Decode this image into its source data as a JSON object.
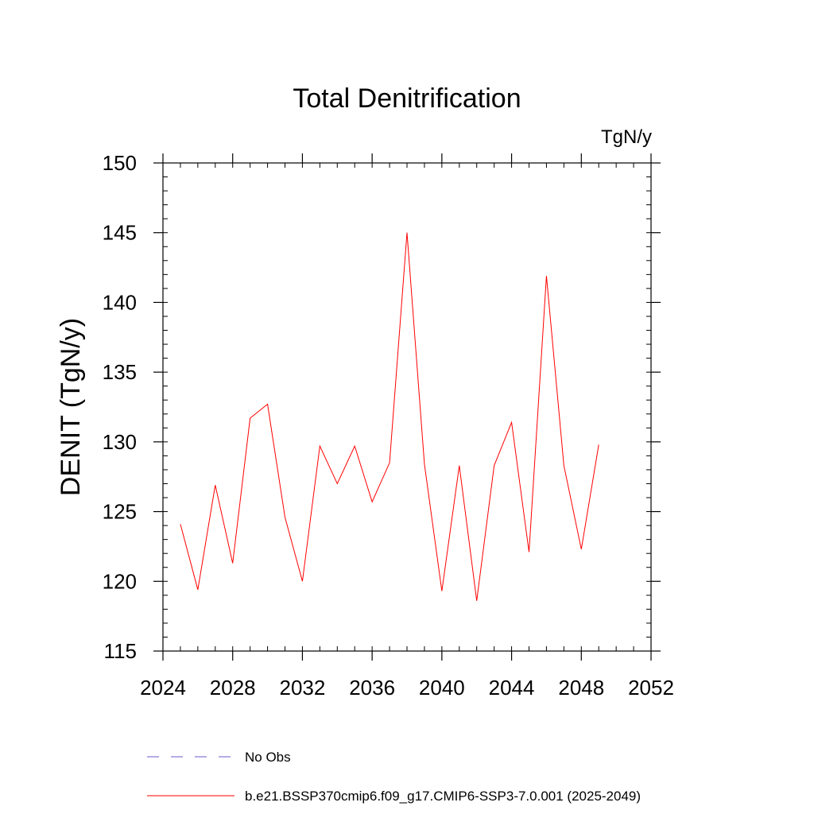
{
  "chart_data": {
    "type": "line",
    "title": "Total Denitrification",
    "units_label": "TgN/y",
    "ylabel": "DENIT  (TgN/y)",
    "xlabel": "",
    "xlim": [
      2024,
      2052
    ],
    "ylim": [
      115,
      150
    ],
    "x_ticks": [
      2024,
      2028,
      2032,
      2036,
      2040,
      2044,
      2048,
      2052
    ],
    "x_minor_step": 1,
    "y_ticks": [
      115,
      120,
      125,
      130,
      135,
      140,
      145,
      150
    ],
    "y_minor_step": 1,
    "grid": false,
    "legend_position": "bottom",
    "series": [
      {
        "name": "b.e21.BSSP370cmip6.f09_g17.CMIP6-SSP3-7.0.001 (2025-2049)",
        "color": "#ff0000",
        "style": "solid",
        "x": [
          2025,
          2026,
          2027,
          2028,
          2029,
          2030,
          2031,
          2032,
          2033,
          2034,
          2035,
          2036,
          2037,
          2038,
          2039,
          2040,
          2041,
          2042,
          2043,
          2044,
          2045,
          2046,
          2047,
          2048,
          2049
        ],
        "values": [
          124.1,
          119.4,
          126.9,
          121.3,
          131.7,
          132.7,
          124.6,
          120.0,
          129.7,
          127.0,
          129.7,
          125.7,
          128.5,
          145.0,
          128.4,
          119.3,
          128.3,
          118.6,
          128.3,
          131.4,
          122.1,
          141.9,
          128.3,
          122.3,
          129.8
        ]
      },
      {
        "name": "No Obs",
        "color": "#6a5acd",
        "style": "dashed",
        "x": [],
        "values": []
      }
    ]
  }
}
